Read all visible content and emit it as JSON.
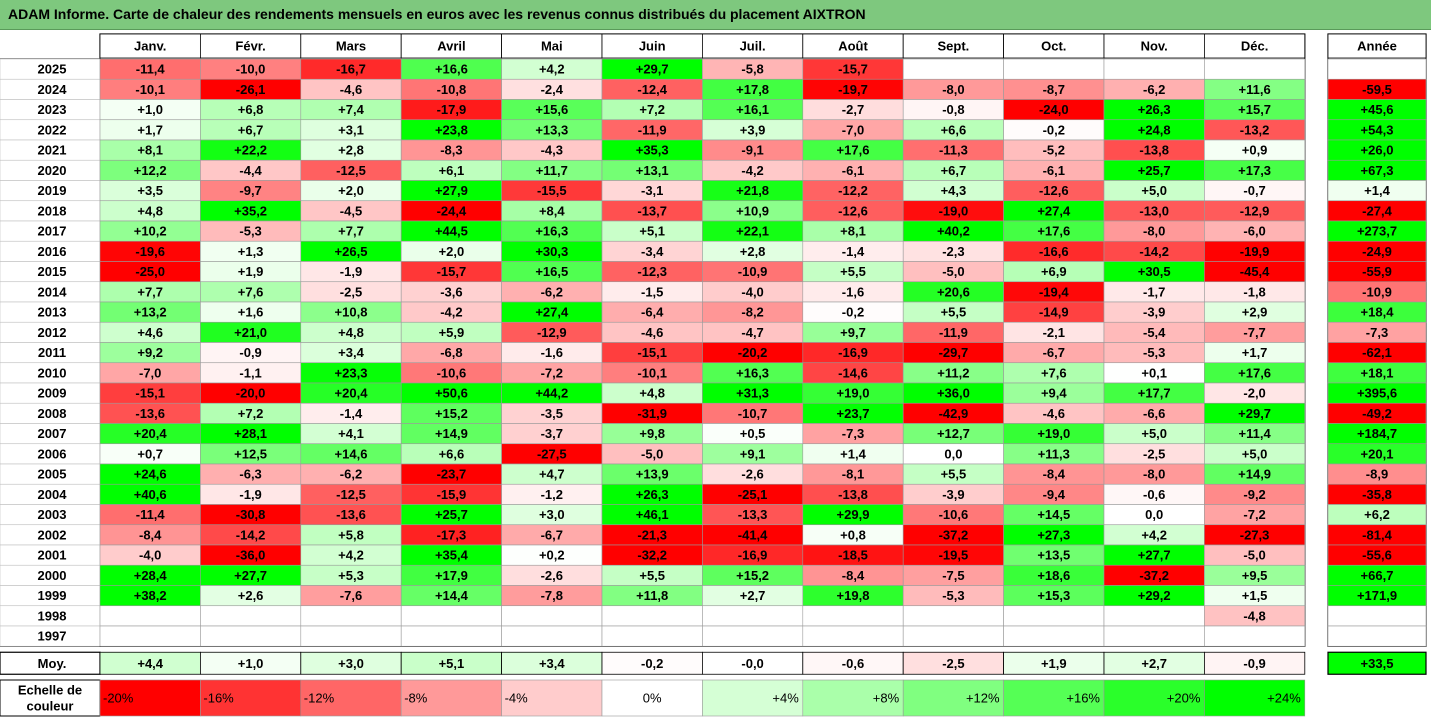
{
  "title": "ADAM Informe. Carte de chaleur des rendements mensuels en euros avec les revenus connus distribués du placement AIXTRON",
  "chart_data": {
    "type": "heatmap",
    "months": [
      "Janv.",
      "Févr.",
      "Mars",
      "Avril",
      "Mai",
      "Juin",
      "Juil.",
      "Août",
      "Sept.",
      "Oct.",
      "Nov.",
      "Déc."
    ],
    "annual_label": "Année",
    "rows": [
      {
        "year": "2025",
        "values": [
          "-11,4",
          "-10,0",
          "-16,7",
          "+16,6",
          "+4,2",
          "+29,7",
          "-5,8",
          "-15,7",
          "",
          "",
          "",
          ""
        ],
        "annual": ""
      },
      {
        "year": "2024",
        "values": [
          "-10,1",
          "-26,1",
          "-4,6",
          "-10,8",
          "-2,4",
          "-12,4",
          "+17,8",
          "-19,7",
          "-8,0",
          "-8,7",
          "-6,2",
          "+11,6"
        ],
        "annual": "-59,5"
      },
      {
        "year": "2023",
        "values": [
          "+1,0",
          "+6,8",
          "+7,4",
          "-17,9",
          "+15,6",
          "+7,2",
          "+16,1",
          "-2,7",
          "-0,8",
          "-24,0",
          "+26,3",
          "+15,7"
        ],
        "annual": "+45,6"
      },
      {
        "year": "2022",
        "values": [
          "+1,7",
          "+6,7",
          "+3,1",
          "+23,8",
          "+13,3",
          "-11,9",
          "+3,9",
          "-7,0",
          "+6,6",
          "-0,2",
          "+24,8",
          "-13,2"
        ],
        "annual": "+54,3"
      },
      {
        "year": "2021",
        "values": [
          "+8,1",
          "+22,2",
          "+2,8",
          "-8,3",
          "-4,3",
          "+35,3",
          "-9,1",
          "+17,6",
          "-11,3",
          "-5,2",
          "-13,8",
          "+0,9"
        ],
        "annual": "+26,0"
      },
      {
        "year": "2020",
        "values": [
          "+12,2",
          "-4,4",
          "-12,5",
          "+6,1",
          "+11,7",
          "+13,1",
          "-4,2",
          "-6,1",
          "+6,7",
          "-6,1",
          "+25,7",
          "+17,3"
        ],
        "annual": "+67,3"
      },
      {
        "year": "2019",
        "values": [
          "+3,5",
          "-9,7",
          "+2,0",
          "+27,9",
          "-15,5",
          "-3,1",
          "+21,8",
          "-12,2",
          "+4,3",
          "-12,6",
          "+5,0",
          "-0,7"
        ],
        "annual": "+1,4"
      },
      {
        "year": "2018",
        "values": [
          "+4,8",
          "+35,2",
          "-4,5",
          "-24,4",
          "+8,4",
          "-13,7",
          "+10,9",
          "-12,6",
          "-19,0",
          "+27,4",
          "-13,0",
          "-12,9"
        ],
        "annual": "-27,4"
      },
      {
        "year": "2017",
        "values": [
          "+10,2",
          "-5,3",
          "+7,7",
          "+44,5",
          "+16,3",
          "+5,1",
          "+22,1",
          "+8,1",
          "+40,2",
          "+17,6",
          "-8,0",
          "-6,0"
        ],
        "annual": "+273,7"
      },
      {
        "year": "2016",
        "values": [
          "-19,6",
          "+1,3",
          "+26,5",
          "+2,0",
          "+30,3",
          "-3,4",
          "+2,8",
          "-1,4",
          "-2,3",
          "-16,6",
          "-14,2",
          "-19,9"
        ],
        "annual": "-24,9"
      },
      {
        "year": "2015",
        "values": [
          "-25,0",
          "+1,9",
          "-1,9",
          "-15,7",
          "+16,5",
          "-12,3",
          "-10,9",
          "+5,5",
          "-5,0",
          "+6,9",
          "+30,5",
          "-45,4"
        ],
        "annual": "-55,9"
      },
      {
        "year": "2014",
        "values": [
          "+7,7",
          "+7,6",
          "-2,5",
          "-3,6",
          "-6,2",
          "-1,5",
          "-4,0",
          "-1,6",
          "+20,6",
          "-19,4",
          "-1,7",
          "-1,8"
        ],
        "annual": "-10,9"
      },
      {
        "year": "2013",
        "values": [
          "+13,2",
          "+1,6",
          "+10,8",
          "-4,2",
          "+27,4",
          "-6,4",
          "-8,2",
          "-0,2",
          "+5,5",
          "-14,9",
          "-3,9",
          "+2,9"
        ],
        "annual": "+18,4"
      },
      {
        "year": "2012",
        "values": [
          "+4,6",
          "+21,0",
          "+4,8",
          "+5,9",
          "-12,9",
          "-4,6",
          "-4,7",
          "+9,7",
          "-11,9",
          "-2,1",
          "-5,4",
          "-7,7"
        ],
        "annual": "-7,3"
      },
      {
        "year": "2011",
        "values": [
          "+9,2",
          "-0,9",
          "+3,4",
          "-6,8",
          "-1,6",
          "-15,1",
          "-20,2",
          "-16,9",
          "-29,7",
          "-6,7",
          "-5,3",
          "+1,7"
        ],
        "annual": "-62,1"
      },
      {
        "year": "2010",
        "values": [
          "-7,0",
          "-1,1",
          "+23,3",
          "-10,6",
          "-7,2",
          "-10,1",
          "+16,3",
          "-14,6",
          "+11,2",
          "+7,6",
          "+0,1",
          "+17,6"
        ],
        "annual": "+18,1"
      },
      {
        "year": "2009",
        "values": [
          "-15,1",
          "-20,0",
          "+20,4",
          "+50,6",
          "+44,2",
          "+4,8",
          "+31,3",
          "+19,0",
          "+36,0",
          "+9,4",
          "+17,7",
          "-2,0"
        ],
        "annual": "+395,6"
      },
      {
        "year": "2008",
        "values": [
          "-13,6",
          "+7,2",
          "-1,4",
          "+15,2",
          "-3,5",
          "-31,9",
          "-10,7",
          "+23,7",
          "-42,9",
          "-4,6",
          "-6,6",
          "+29,7"
        ],
        "annual": "-49,2"
      },
      {
        "year": "2007",
        "values": [
          "+20,4",
          "+28,1",
          "+4,1",
          "+14,9",
          "-3,7",
          "+9,8",
          "+0,5",
          "-7,3",
          "+12,7",
          "+19,0",
          "+5,0",
          "+11,4"
        ],
        "annual": "+184,7"
      },
      {
        "year": "2006",
        "values": [
          "+0,7",
          "+12,5",
          "+14,6",
          "+6,6",
          "-27,5",
          "-5,0",
          "+9,1",
          "+1,4",
          "0,0",
          "+11,3",
          "-2,5",
          "+5,0"
        ],
        "annual": "+20,1"
      },
      {
        "year": "2005",
        "values": [
          "+24,6",
          "-6,3",
          "-6,2",
          "-23,7",
          "+4,7",
          "+13,9",
          "-2,6",
          "-8,1",
          "+5,5",
          "-8,4",
          "-8,0",
          "+14,9"
        ],
        "annual": "-8,9"
      },
      {
        "year": "2004",
        "values": [
          "+40,6",
          "-1,9",
          "-12,5",
          "-15,9",
          "-1,2",
          "+26,3",
          "-25,1",
          "-13,8",
          "-3,9",
          "-9,4",
          "-0,6",
          "-9,2"
        ],
        "annual": "-35,8"
      },
      {
        "year": "2003",
        "values": [
          "-11,4",
          "-30,8",
          "-13,6",
          "+25,7",
          "+3,0",
          "+46,1",
          "-13,3",
          "+29,9",
          "-10,6",
          "+14,5",
          "0,0",
          "-7,2"
        ],
        "annual": "+6,2"
      },
      {
        "year": "2002",
        "values": [
          "-8,4",
          "-14,2",
          "+5,8",
          "-17,3",
          "-6,7",
          "-21,3",
          "-41,4",
          "+0,8",
          "-37,2",
          "+27,3",
          "+4,2",
          "-27,3"
        ],
        "annual": "-81,4"
      },
      {
        "year": "2001",
        "values": [
          "-4,0",
          "-36,0",
          "+4,2",
          "+35,4",
          "+0,2",
          "-32,2",
          "-16,9",
          "-18,5",
          "-19,5",
          "+13,5",
          "+27,7",
          "-5,0"
        ],
        "annual": "-55,6"
      },
      {
        "year": "2000",
        "values": [
          "+28,4",
          "+27,7",
          "+5,3",
          "+17,9",
          "-2,6",
          "+5,5",
          "+15,2",
          "-8,4",
          "-7,5",
          "+18,6",
          "-37,2",
          "+9,5"
        ],
        "annual": "+66,7"
      },
      {
        "year": "1999",
        "values": [
          "+38,2",
          "+2,6",
          "-7,6",
          "+14,4",
          "-7,8",
          "+11,8",
          "+2,7",
          "+19,8",
          "-5,3",
          "+15,3",
          "+29,2",
          "+1,5"
        ],
        "annual": "+171,9"
      },
      {
        "year": "1998",
        "values": [
          "",
          "",
          "",
          "",
          "",
          "",
          "",
          "",
          "",
          "",
          "",
          "-4,8"
        ],
        "annual": ""
      },
      {
        "year": "1997",
        "values": [
          "",
          "",
          "",
          "",
          "",
          "",
          "",
          "",
          "",
          "",
          "",
          ""
        ],
        "annual": ""
      }
    ],
    "average": {
      "label": "Moy.",
      "values": [
        "+4,4",
        "+1,0",
        "+3,0",
        "+5,1",
        "+3,4",
        "-0,2",
        "-0,0",
        "-0,6",
        "-2,5",
        "+1,9",
        "+2,7",
        "-0,9"
      ],
      "annual": "+33,5"
    },
    "scale": {
      "label_line1": "Echelle de",
      "label_line2": "couleur",
      "steps": [
        "-20%",
        "-16%",
        "-12%",
        "-8%",
        "-4%",
        "0%",
        "+4%",
        "+8%",
        "+12%",
        "+16%",
        "+20%",
        "+24%"
      ]
    },
    "colors": {
      "neg_max": "#ff0000",
      "zero": "#ffffff",
      "pos_max": "#00ff00",
      "title_bg": "#7ec87e"
    }
  }
}
